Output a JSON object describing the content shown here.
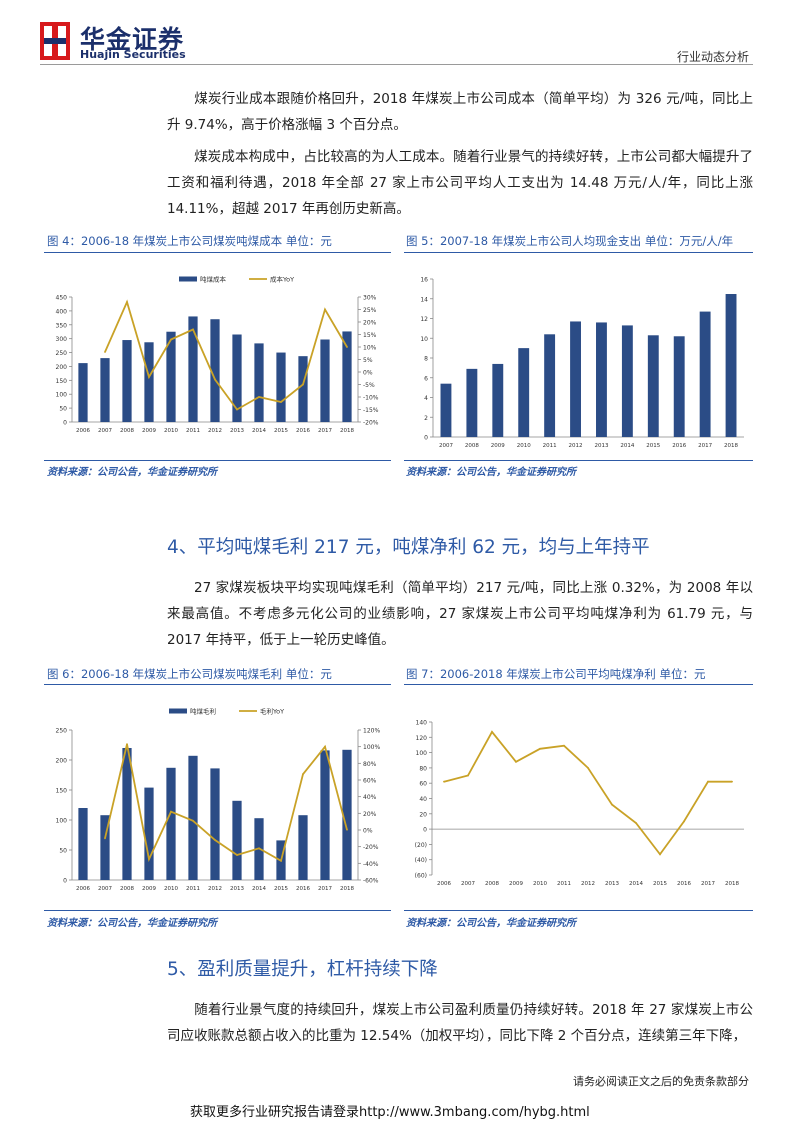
{
  "header": {
    "logo_cn": "华金证券",
    "logo_en": "Huajin Securities",
    "doc_type": "行业动态分析"
  },
  "paragraphs": [
    "煤炭行业成本跟随价格回升，2018 年煤炭上市公司成本（简单平均）为 326 元/吨，同比上升 9.74%，高于价格涨幅 3 个百分点。",
    "煤炭成本构成中，占比较高的为人工成本。随着行业景气的持续好转，上市公司都大幅提升了工资和福利待遇，2018 年全部 27 家上市公司平均人工支出为 14.48 万元/人/年，同比上涨 14.11%，超越 2017 年再创历史新高。",
    "27 家煤炭板块平均实现吨煤毛利（简单平均）217 元/吨，同比上涨 0.32%，为 2008 年以来最高值。不考虑多元化公司的业绩影响，27 家煤炭上市公司平均吨煤净利为 61.79 元，与 2017 年持平，低于上一轮历史峰值。",
    "随着行业景气度的持续回升，煤炭上市公司盈利质量仍持续好转。2018 年 27 家煤炭上市公司应收账款总额占收入的比重为 12.54%（加权平均），同比下降 2 个百分点，连续第三年下降，"
  ],
  "sections": {
    "s4": "4、平均吨煤毛利 217 元，吨煤净利 62 元，均与上年持平",
    "s5": "5、盈利质量提升，杠杆持续下降"
  },
  "figures": {
    "f4": {
      "title": "图 4：2006-18 年煤炭上市公司煤炭吨煤成本  单位：元",
      "source": "资料来源：公司公告，华金证券研究所"
    },
    "f5": {
      "title": "图 5：2007-18 年煤炭上市公司人均现金支出  单位：万元/人/年",
      "source": "资料来源：公司公告，华金证券研究所"
    },
    "f6": {
      "title": "图 6：2006-18 年煤炭上市公司煤炭吨煤毛利  单位：元",
      "source": "资料来源：公司公告，华金证券研究所"
    },
    "f7": {
      "title": "图 7：2006-2018 年煤炭上市公司平均吨煤净利  单位：元",
      "source": "资料来源：公司公告，华金证券研究所"
    }
  },
  "footer": {
    "note": "请务必阅读正文之后的免责条款部分",
    "link": "获取更多行业研究报告请登录http://www.3mbang.com/hybg.html"
  },
  "colors": {
    "bar": "#2b4c86",
    "line": "#c9a227",
    "accent": "#2e5aa6",
    "logo_red": "#d7191c",
    "logo_navy": "#1b2f6b"
  },
  "chart_data": [
    {
      "id": "fig4",
      "type": "bar",
      "categories": [
        "2006",
        "2007",
        "2008",
        "2009",
        "2010",
        "2011",
        "2012",
        "2013",
        "2014",
        "2015",
        "2016",
        "2017",
        "2018"
      ],
      "series": [
        {
          "name": "吨煤成本",
          "type": "bar",
          "axis": "left",
          "values": [
            212,
            230,
            295,
            287,
            325,
            380,
            370,
            315,
            283,
            250,
            237,
            297,
            326
          ]
        },
        {
          "name": "成本YoY",
          "type": "line",
          "axis": "right",
          "values": [
            null,
            8,
            28,
            -2,
            13,
            17,
            -3,
            -15,
            -10,
            -12,
            -5,
            25,
            10
          ]
        }
      ],
      "ylim": [
        0,
        450
      ],
      "yticks": [
        0,
        50,
        100,
        150,
        200,
        250,
        300,
        350,
        400,
        450
      ],
      "y2lim": [
        -20,
        30
      ],
      "y2ticks": [
        "-20%",
        "-15%",
        "-10%",
        "-5%",
        "0%",
        "5%",
        "10%",
        "15%",
        "20%",
        "25%",
        "30%"
      ],
      "legend": "top-center"
    },
    {
      "id": "fig5",
      "type": "bar",
      "categories": [
        "2007",
        "2008",
        "2009",
        "2010",
        "2011",
        "2012",
        "2013",
        "2014",
        "2015",
        "2016",
        "2017",
        "2018"
      ],
      "series": [
        {
          "values": [
            5.4,
            6.9,
            7.4,
            9.0,
            10.4,
            11.7,
            11.6,
            11.3,
            10.3,
            10.2,
            12.7,
            14.48
          ]
        }
      ],
      "ylim": [
        0,
        16
      ],
      "yticks": [
        0,
        2,
        4,
        6,
        8,
        10,
        12,
        14,
        16
      ]
    },
    {
      "id": "fig6",
      "type": "bar",
      "categories": [
        "2006",
        "2007",
        "2008",
        "2009",
        "2010",
        "2011",
        "2012",
        "2013",
        "2014",
        "2015",
        "2016",
        "2017",
        "2018"
      ],
      "series": [
        {
          "name": "吨煤毛利",
          "type": "bar",
          "axis": "left",
          "values": [
            120,
            108,
            220,
            154,
            187,
            207,
            186,
            132,
            103,
            66,
            108,
            216,
            217
          ]
        },
        {
          "name": "毛利YoY",
          "type": "line",
          "axis": "right",
          "values": [
            null,
            -10,
            103,
            -35,
            22,
            11,
            -12,
            -30,
            -22,
            -37,
            67,
            100,
            0.3
          ]
        }
      ],
      "ylim": [
        0,
        250
      ],
      "yticks": [
        0,
        50,
        100,
        150,
        200,
        250
      ],
      "y2lim": [
        -60,
        120
      ],
      "y2ticks": [
        "-60%",
        "-40%",
        "-20%",
        "0%",
        "20%",
        "40%",
        "60%",
        "80%",
        "100%",
        "120%"
      ],
      "legend": "top-center"
    },
    {
      "id": "fig7",
      "type": "line",
      "categories": [
        "2006",
        "2007",
        "2008",
        "2009",
        "2010",
        "2011",
        "2012",
        "2013",
        "2014",
        "2015",
        "2016",
        "2017",
        "2018"
      ],
      "series": [
        {
          "values": [
            62,
            70,
            127,
            88,
            105,
            109,
            80,
            32,
            8,
            -33,
            10,
            62,
            62
          ]
        }
      ],
      "ylim": [
        -60,
        140
      ],
      "yticks": [
        "(60)",
        "(40)",
        "(20)",
        "0",
        "20",
        "40",
        "60",
        "80",
        "100",
        "120",
        "140"
      ]
    }
  ]
}
